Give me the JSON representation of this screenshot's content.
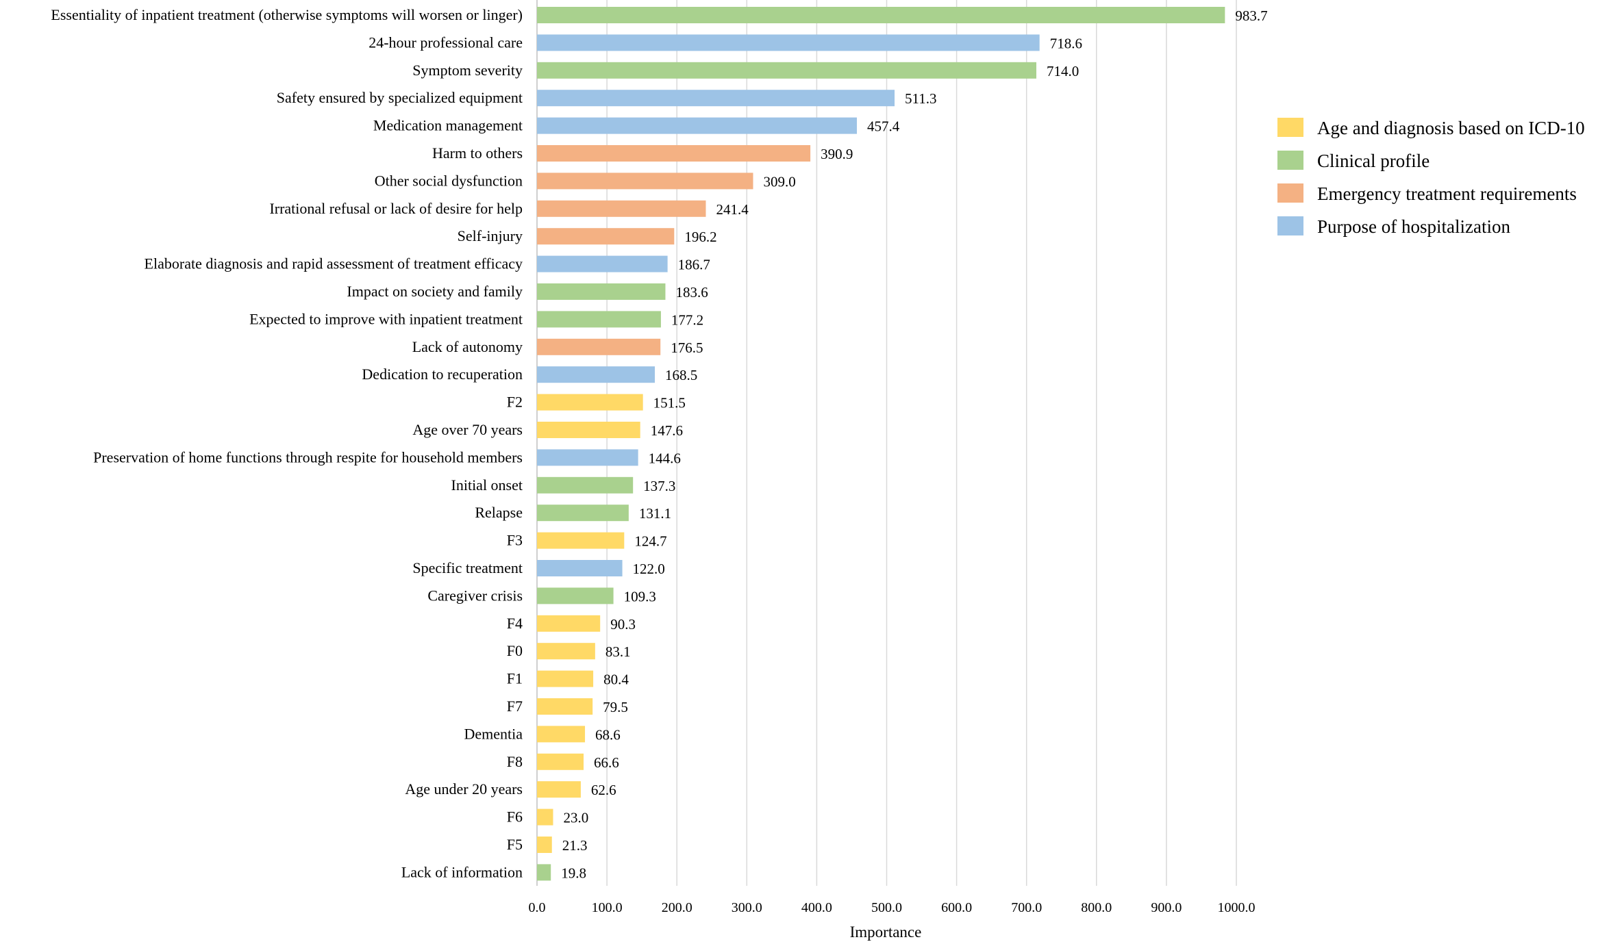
{
  "chart_data": {
    "type": "bar",
    "orientation": "horizontal",
    "title": "",
    "xlabel": "Importance",
    "ylabel": "",
    "xlim": [
      0,
      1000
    ],
    "xticks": [
      "0.0",
      "100.0",
      "200.0",
      "300.0",
      "400.0",
      "500.0",
      "600.0",
      "700.0",
      "800.0",
      "900.0",
      "1000.0"
    ],
    "grid": true,
    "legend_position": "right",
    "groups": [
      {
        "key": "age",
        "name": "Age and diagnosis based on ICD-10",
        "color": "#ffd966"
      },
      {
        "key": "clinical",
        "name": "Clinical profile",
        "color": "#a9d18e"
      },
      {
        "key": "emergency",
        "name": "Emergency treatment requirements",
        "color": "#f4b183"
      },
      {
        "key": "purpose",
        "name": "Purpose of hospitalization",
        "color": "#9dc3e6"
      }
    ],
    "bars": [
      {
        "label": "Essentiality of inpatient treatment  (otherwise symptoms will worsen or linger)",
        "value": 983.7,
        "value_label": "983.7",
        "group": "clinical"
      },
      {
        "label": "24-hour professional care",
        "value": 718.6,
        "value_label": "718.6",
        "group": "purpose"
      },
      {
        "label": "Symptom severity",
        "value": 714.0,
        "value_label": "714.0",
        "group": "clinical"
      },
      {
        "label": "Safety ensured by specialized equipment",
        "value": 511.3,
        "value_label": "511.3",
        "group": "purpose"
      },
      {
        "label": "Medication management",
        "value": 457.4,
        "value_label": "457.4",
        "group": "purpose"
      },
      {
        "label": "Harm to others",
        "value": 390.9,
        "value_label": "390.9",
        "group": "emergency"
      },
      {
        "label": "Other social dysfunction",
        "value": 309.0,
        "value_label": "309.0",
        "group": "emergency"
      },
      {
        "label": "Irrational refusal or lack of desire for help",
        "value": 241.4,
        "value_label": "241.4",
        "group": "emergency"
      },
      {
        "label": "Self-injury",
        "value": 196.2,
        "value_label": "196.2",
        "group": "emergency"
      },
      {
        "label": "Elaborate diagnosis and rapid assessment of treatment efficacy",
        "value": 186.7,
        "value_label": "186.7",
        "group": "purpose"
      },
      {
        "label": "Impact on society and family",
        "value": 183.6,
        "value_label": "183.6",
        "group": "clinical"
      },
      {
        "label": "Expected to improve with inpatient treatment",
        "value": 177.2,
        "value_label": "177.2",
        "group": "clinical"
      },
      {
        "label": "Lack of autonomy",
        "value": 176.5,
        "value_label": "176.5",
        "group": "emergency"
      },
      {
        "label": "Dedication to recuperation",
        "value": 168.5,
        "value_label": "168.5",
        "group": "purpose"
      },
      {
        "label": "F2",
        "value": 151.5,
        "value_label": "151.5",
        "group": "age"
      },
      {
        "label": "Age over 70 years",
        "value": 147.6,
        "value_label": "147.6",
        "group": "age"
      },
      {
        "label": "Preservation of home functions through respite for household members",
        "value": 144.6,
        "value_label": "144.6",
        "group": "purpose"
      },
      {
        "label": "Initial onset",
        "value": 137.3,
        "value_label": "137.3",
        "group": "clinical"
      },
      {
        "label": "Relapse",
        "value": 131.1,
        "value_label": "131.1",
        "group": "clinical"
      },
      {
        "label": "F3",
        "value": 124.7,
        "value_label": "124.7",
        "group": "age"
      },
      {
        "label": "Specific treatment",
        "value": 122.0,
        "value_label": "122.0",
        "group": "purpose"
      },
      {
        "label": "Caregiver crisis",
        "value": 109.3,
        "value_label": "109.3",
        "group": "clinical"
      },
      {
        "label": "F4",
        "value": 90.3,
        "value_label": "90.3",
        "group": "age"
      },
      {
        "label": "F0",
        "value": 83.1,
        "value_label": "83.1",
        "group": "age"
      },
      {
        "label": "F1",
        "value": 80.4,
        "value_label": "80.4",
        "group": "age"
      },
      {
        "label": "F7",
        "value": 79.5,
        "value_label": "79.5",
        "group": "age"
      },
      {
        "label": "Dementia",
        "value": 68.6,
        "value_label": "68.6",
        "group": "age"
      },
      {
        "label": "F8",
        "value": 66.6,
        "value_label": "66.6",
        "group": "age"
      },
      {
        "label": "Age under 20 years",
        "value": 62.6,
        "value_label": "62.6",
        "group": "age"
      },
      {
        "label": "F6",
        "value": 23.0,
        "value_label": "23.0",
        "group": "age"
      },
      {
        "label": "F5",
        "value": 21.3,
        "value_label": "21.3",
        "group": "age"
      },
      {
        "label": "Lack of information",
        "value": 19.8,
        "value_label": "19.8",
        "group": "clinical"
      }
    ]
  }
}
